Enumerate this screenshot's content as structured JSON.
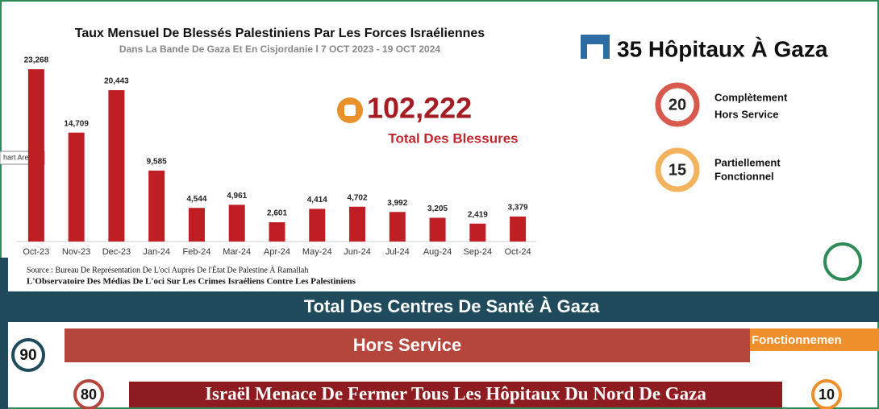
{
  "chart_data": {
    "type": "bar",
    "title": "Taux Mensuel De Blessés Palestiniens Par Les Forces Israéliennes",
    "subtitle": "Dans La Bande De Gaza Et En Cisjordanie  l 7 OCT 2023 - 19 OCT 2024",
    "categories": [
      "Oct-23",
      "Nov-23",
      "Dec-23",
      "Jan-24",
      "Feb-24",
      "Mar-24",
      "Apr-24",
      "May-24",
      "Jun-24",
      "Jul-24",
      "Aug-24",
      "Sep-24",
      "Oct-24"
    ],
    "values": [
      23268,
      14709,
      20443,
      9585,
      4544,
      4961,
      2601,
      4414,
      4702,
      3992,
      3205,
      2419,
      3379
    ],
    "value_labels": [
      "23,268",
      "14,709",
      "20,443",
      "9,585",
      "4,544",
      "4,961",
      "2,601",
      "4,414",
      "4,702",
      "3,992",
      "3,205",
      "2,419",
      "3,379"
    ],
    "color": "#bf1e24",
    "tooltip": "hart Area"
  },
  "total": {
    "value": "102,222",
    "label": "Total Des Blessures"
  },
  "hospitals": {
    "title": "35 Hôpitaux À Gaza",
    "items": [
      {
        "number": "20",
        "line1": "Complètement",
        "line2": "Hors Service"
      },
      {
        "number": "15",
        "line1": "Partiellement",
        "line2": "Fonctionnel"
      }
    ]
  },
  "source": {
    "line1": "Source : Bureau De Représentation De L'oci Auprès De l'État De Palestine À Ramallah",
    "line2": "L'Observatoire Des Médias De L'oci Sur Les Crimes Israéliens Contre Les Palestiniens"
  },
  "centres": {
    "title": "Total Des Centres De Santé À Gaza",
    "total": "90",
    "out_label": "Hors Service",
    "out_number": "80",
    "working_label": "Fonctionnemen",
    "working_number": "10"
  },
  "banner": "Israël Menace De Fermer Tous Les Hôpitaux Du Nord De Gaza"
}
